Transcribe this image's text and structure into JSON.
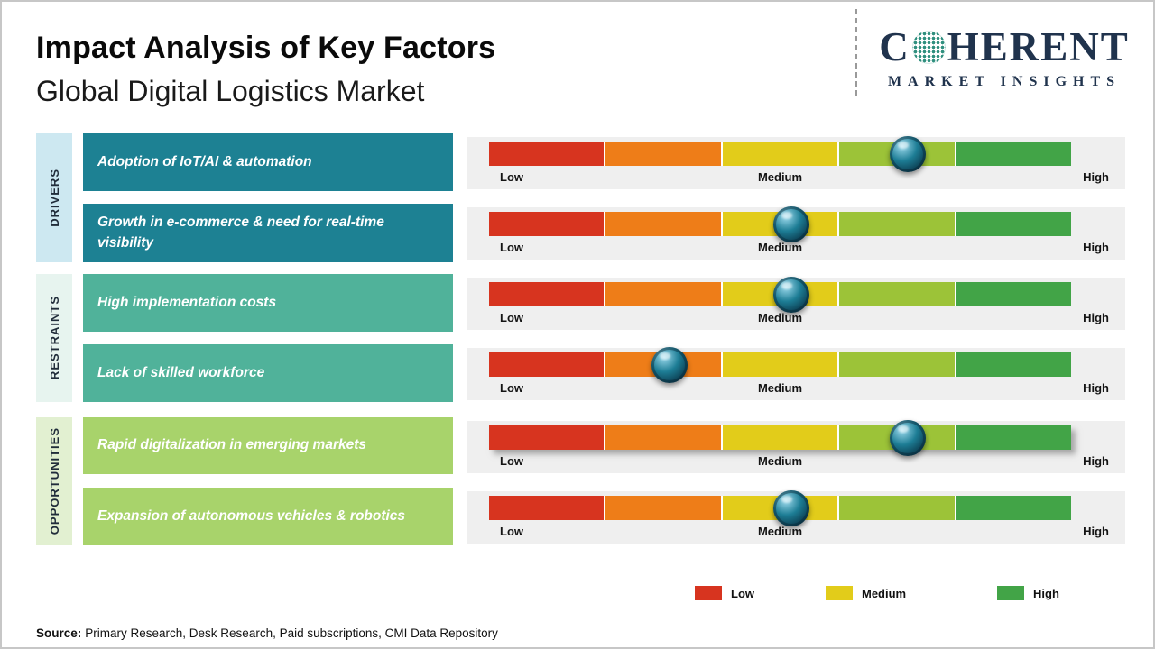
{
  "header": {
    "title": "Impact Analysis of Key Factors",
    "subtitle": "Global Digital Logistics Market"
  },
  "logo": {
    "brand_c": "C",
    "brand_rest": "HERENT",
    "tagline": "MARKET INSIGHTS"
  },
  "groups": [
    {
      "label": "DRIVERS"
    },
    {
      "label": "RESTRAINTS"
    },
    {
      "label": "OPPORTUNITIES"
    }
  ],
  "rows": [
    {
      "group": "Drivers",
      "factor": "Adoption of IoT/AI & automation",
      "impact_level": "Medium-High",
      "marker_percent": 72
    },
    {
      "group": "Drivers",
      "factor": "Growth in e-commerce & need for real-time visibility",
      "impact_level": "Medium",
      "marker_percent": 52
    },
    {
      "group": "Restraints",
      "factor": "High implementation costs",
      "impact_level": "Medium",
      "marker_percent": 52
    },
    {
      "group": "Restraints",
      "factor": "Lack of skilled workforce",
      "impact_level": "Low-Medium",
      "marker_percent": 31
    },
    {
      "group": "Opportunities",
      "factor": "Rapid digitalization in emerging markets",
      "impact_level": "Medium-High",
      "marker_percent": 72
    },
    {
      "group": "Opportunities",
      "factor": "Expansion of autonomous vehicles & robotics",
      "impact_level": "Medium",
      "marker_percent": 52
    }
  ],
  "scale": {
    "low": "Low",
    "medium": "Medium",
    "high": "High"
  },
  "legend": [
    {
      "label": "Low",
      "color": "#d7341f"
    },
    {
      "label": "Medium",
      "color": "#e2cc1a"
    },
    {
      "label": "High",
      "color": "#42a447"
    }
  ],
  "source": {
    "label": "Source:",
    "text": "Primary Research, Desk Research, Paid subscriptions, CMI Data Repository"
  },
  "colors": {
    "bar-red": "#d7341f",
    "bar-orange": "#ee7d18",
    "bar-yellow": "#e2cc1a",
    "bar-yellowgreen": "#9cc338",
    "bar-green": "#42a447",
    "driver-box": "#1d8193",
    "restraint-box": "#50b29a",
    "opportunity-box": "#a8d36b",
    "driver-strip": "#cde8f1",
    "restraint-strip": "#e7f4ef",
    "opportunity-strip": "#e2f0d1",
    "row-strip": "#efefef",
    "logo-navy": "#20334d",
    "marker-light": "#9fdcef",
    "marker-mid": "#1d7d95",
    "marker-dark": "#0b3a4d"
  },
  "chart_data": {
    "type": "bar",
    "title": "Impact Analysis of Key Factors",
    "subtitle": "Global Digital Logistics Market",
    "scale": [
      "Low",
      "Medium",
      "High"
    ],
    "categories": [
      "Adoption of IoT/AI & automation",
      "Growth in e-commerce & need for real-time visibility",
      "High implementation costs",
      "Lack of skilled workforce",
      "Rapid digitalization in emerging markets",
      "Expansion of autonomous vehicles & robotics"
    ],
    "groups": [
      "Drivers",
      "Drivers",
      "Restraints",
      "Restraints",
      "Opportunities",
      "Opportunities"
    ],
    "values_percent_of_scale": [
      72,
      52,
      52,
      31,
      72,
      52
    ],
    "impact_labels": [
      "Medium-High",
      "Medium",
      "Medium",
      "Low-Medium",
      "Medium-High",
      "Medium"
    ],
    "legend_position": "bottom",
    "legend_entries": [
      "Low",
      "Medium",
      "High"
    ],
    "grid": false
  }
}
